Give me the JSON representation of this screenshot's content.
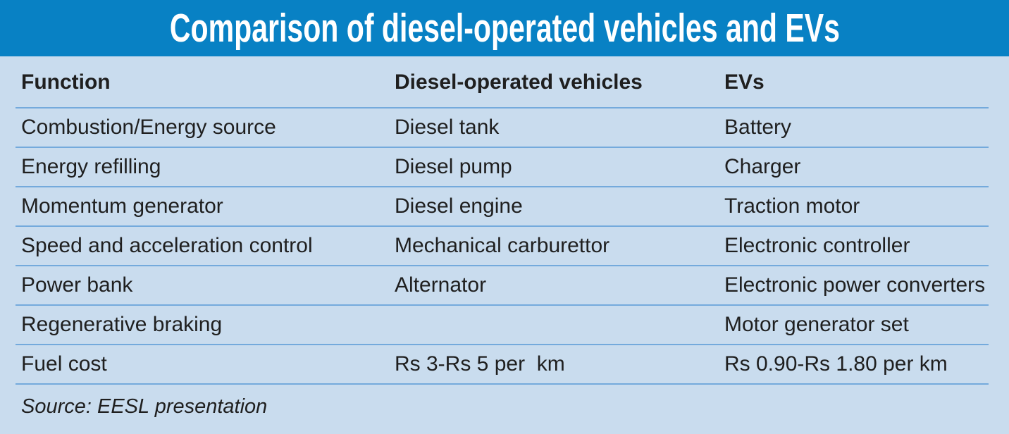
{
  "colors": {
    "title_bar_bg": "#0881c4",
    "title_text": "#ffffff",
    "body_bg": "#c9dcee",
    "row_rule": "#74aadc",
    "body_text": "#1f1f1f"
  },
  "chart_data": {
    "type": "table",
    "title": "Comparison of diesel-operated vehicles and EVs",
    "columns": [
      "Function",
      "Diesel-operated vehicles",
      "EVs"
    ],
    "rows": [
      [
        "Combustion/Energy source",
        "Diesel tank",
        "Battery"
      ],
      [
        "Energy refilling",
        "Diesel pump",
        "Charger"
      ],
      [
        "Momentum generator",
        "Diesel engine",
        "Traction motor"
      ],
      [
        "Speed and acceleration control",
        "Mechanical carburettor",
        "Electronic controller"
      ],
      [
        "Power bank",
        "Alternator",
        "Electronic power converters"
      ],
      [
        "Regenerative braking",
        "",
        "Motor generator set"
      ],
      [
        "Fuel cost",
        "Rs 3-Rs 5 per  km",
        "Rs 0.90-Rs 1.80 per km"
      ]
    ],
    "source": "Source: EESL presentation",
    "layout": "3-column comparison table, alternating thin blue rules between rows, grid off, no legend"
  }
}
